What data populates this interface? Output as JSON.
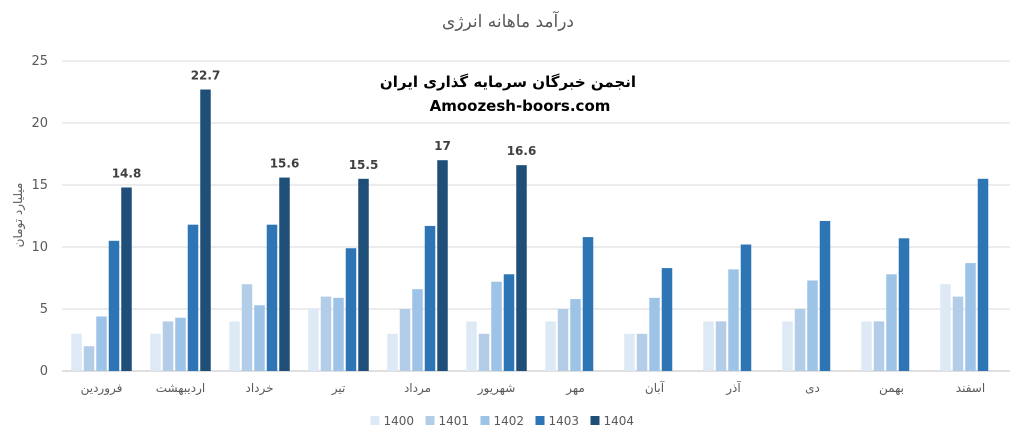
{
  "chart_data": {
    "type": "bar",
    "title": "درآمد ماهانه انرژی",
    "ylabel": "میلیارد تومان",
    "xlabel": "",
    "ylim": [
      0,
      25
    ],
    "yticks": [
      0,
      5,
      10,
      15,
      20,
      25
    ],
    "grid": true,
    "legend_position": "bottom",
    "categories": [
      "فروردین",
      "اردیبهشت",
      "خرداد",
      "تیر",
      "مرداد",
      "شهریور",
      "مهر",
      "آبان",
      "آذر",
      "دی",
      "بهمن",
      "اسفند"
    ],
    "series": [
      {
        "name": "1400",
        "color": "#dee9f6",
        "values": [
          3,
          3,
          4,
          5,
          3,
          4,
          4,
          3,
          4,
          4,
          4,
          7
        ]
      },
      {
        "name": "1401",
        "color": "#b3cde9",
        "values": [
          2,
          4,
          7,
          6,
          5,
          3,
          5,
          3,
          4,
          5,
          4,
          6
        ]
      },
      {
        "name": "1402",
        "color": "#9dc3e6",
        "values": [
          4.4,
          4.3,
          5.3,
          5.9,
          6.6,
          7.2,
          5.8,
          5.9,
          8.2,
          7.3,
          7.8,
          8.7
        ]
      },
      {
        "name": "1403",
        "color": "#2e75b6",
        "values": [
          10.5,
          11.8,
          11.8,
          9.9,
          11.7,
          7.8,
          10.8,
          8.3,
          10.2,
          12.1,
          10.7,
          15.5
        ]
      },
      {
        "name": "1404",
        "color": "#1f4e79",
        "values": [
          14.8,
          22.7,
          15.6,
          15.5,
          17,
          16.6,
          null,
          null,
          null,
          null,
          null,
          null
        ]
      }
    ],
    "data_labels": {
      "series": "1404",
      "labels": [
        "14.8",
        "22.7",
        "15.6",
        "15.5",
        "17",
        "16.6"
      ]
    }
  },
  "watermark": {
    "line1": "انجمن خبرگان سرمایه گذاری ایران",
    "line2": "Amoozesh-boors.com"
  }
}
